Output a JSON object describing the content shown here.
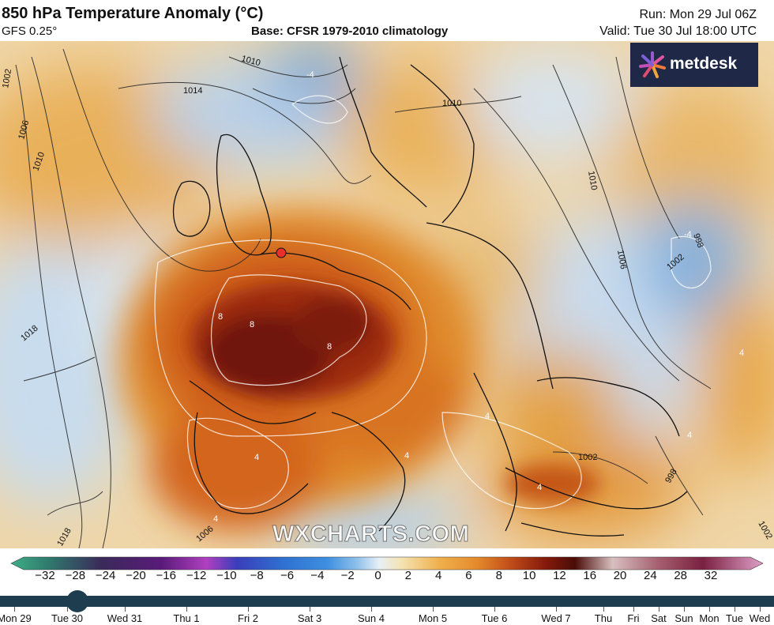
{
  "header": {
    "title": "850 hPa Temperature Anomaly (°C)",
    "model": "GFS 0.25°",
    "base": "Base: CFSR 1979-2010 climatology",
    "run": "Run: Mon 29 Jul 06Z",
    "valid": "Valid: Tue 30 Jul 18:00 UTC"
  },
  "logo": {
    "text": "metdesk",
    "background": "#1f2846"
  },
  "watermark": "WXCHARTS.COM",
  "map": {
    "region": "Europe",
    "isobar_labels": [
      "1002",
      "1006",
      "1010",
      "1010",
      "1014",
      "1010",
      "1010",
      "1006",
      "1002",
      "998",
      "1018",
      "1018",
      "1006",
      "1002",
      "998",
      "1002"
    ],
    "anomaly_labels": [
      "-4",
      "-4",
      "8",
      "8",
      "8",
      "4",
      "4",
      "4",
      "4",
      "4",
      "4",
      "4"
    ],
    "marker": {
      "color": "#e8312a"
    }
  },
  "colorbar": {
    "ticks": [
      "−32",
      "−28",
      "−24",
      "−20",
      "−16",
      "−12",
      "−10",
      "−8",
      "−6",
      "−4",
      "−2",
      "0",
      "2",
      "4",
      "6",
      "8",
      "10",
      "12",
      "16",
      "20",
      "24",
      "28",
      "32"
    ]
  },
  "timeline": {
    "days": [
      "Mon 29",
      "Tue 30",
      "Wed 31",
      "Thu 1",
      "Fri 2",
      "Sat 3",
      "Sun 4",
      "Mon 5",
      "Tue 6",
      "Wed 7",
      "Thu",
      "Fri",
      "Sat",
      "Sun",
      "Mon",
      "Tue",
      "Wed"
    ],
    "selected": "Tue 30"
  }
}
